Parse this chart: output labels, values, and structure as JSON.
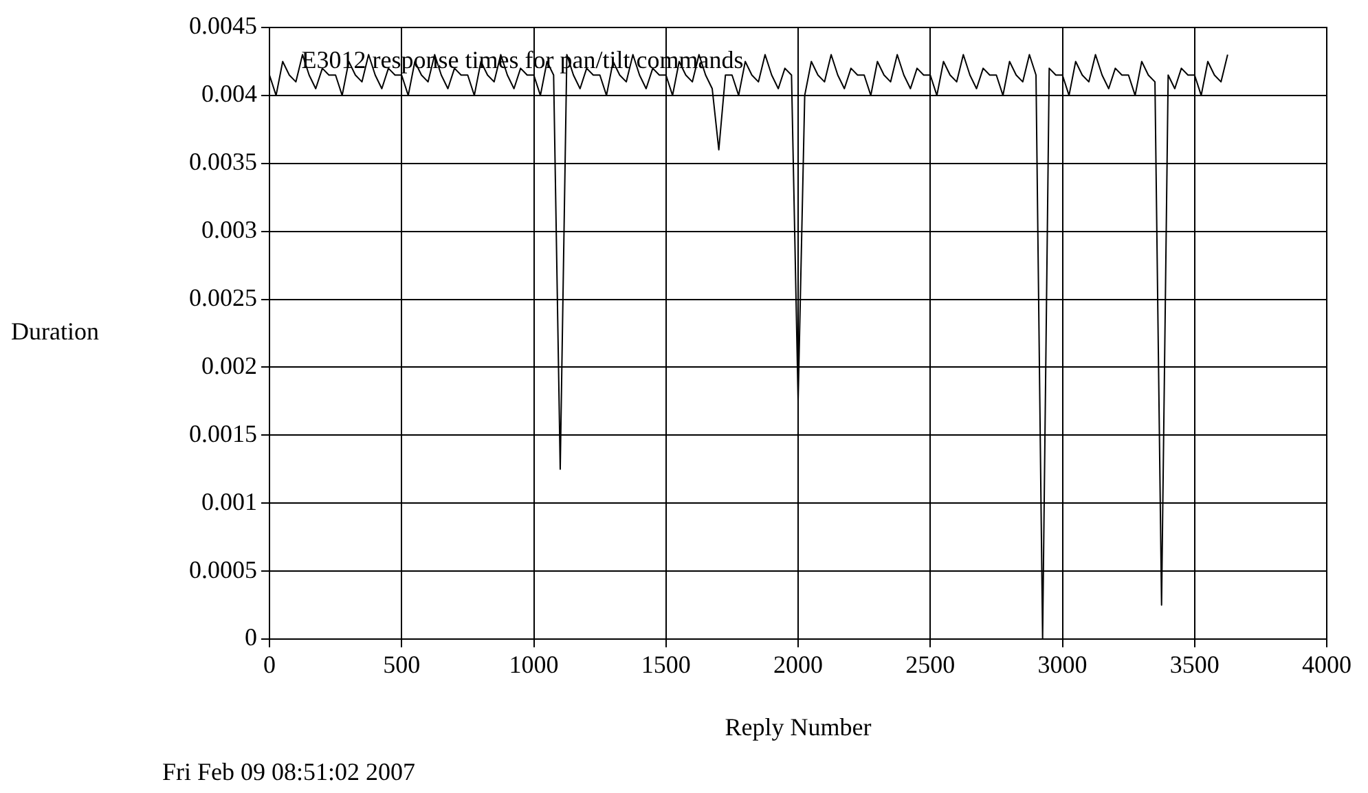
{
  "chart_data": {
    "type": "line",
    "title": "E3012 response times for pan/tilt commands",
    "xlabel": "Reply Number",
    "ylabel": "Duration",
    "annotations": [
      "Fri Feb 09 08:51:02 2007"
    ],
    "x": [
      0,
      25,
      50,
      75,
      100,
      125,
      150,
      175,
      200,
      225,
      250,
      275,
      300,
      325,
      350,
      375,
      400,
      425,
      450,
      475,
      500,
      525,
      550,
      575,
      600,
      625,
      650,
      675,
      700,
      725,
      750,
      775,
      800,
      825,
      850,
      875,
      900,
      925,
      950,
      975,
      1000,
      1025,
      1050,
      1075,
      1100,
      1125,
      1150,
      1175,
      1200,
      1225,
      1250,
      1275,
      1300,
      1325,
      1350,
      1375,
      1400,
      1425,
      1450,
      1475,
      1500,
      1525,
      1550,
      1575,
      1600,
      1625,
      1650,
      1675,
      1700,
      1725,
      1750,
      1775,
      1800,
      1825,
      1850,
      1875,
      1900,
      1925,
      1950,
      1975,
      2000,
      2025,
      2050,
      2075,
      2100,
      2125,
      2150,
      2175,
      2200,
      2225,
      2250,
      2275,
      2300,
      2325,
      2350,
      2375,
      2400,
      2425,
      2450,
      2475,
      2500,
      2525,
      2550,
      2575,
      2600,
      2625,
      2650,
      2675,
      2700,
      2725,
      2750,
      2775,
      2800,
      2825,
      2850,
      2875,
      2900,
      2925,
      2950,
      2975,
      3000,
      3025,
      3050,
      3075,
      3100,
      3125,
      3150,
      3175,
      3200,
      3225,
      3250,
      3275,
      3300,
      3325,
      3350,
      3375,
      3400,
      3425,
      3450,
      3475,
      3500,
      3525,
      3550,
      3575,
      3600,
      3625
    ],
    "series": [
      {
        "color": "#000000",
        "values": [
          0.00415,
          0.004,
          0.00425,
          0.00415,
          0.0041,
          0.0043,
          0.00415,
          0.00405,
          0.0042,
          0.00415,
          0.00415,
          0.004,
          0.00425,
          0.00415,
          0.0041,
          0.0043,
          0.00415,
          0.00405,
          0.0042,
          0.00415,
          0.00415,
          0.004,
          0.00425,
          0.00415,
          0.0041,
          0.0043,
          0.00415,
          0.00405,
          0.0042,
          0.00415,
          0.00415,
          0.004,
          0.00425,
          0.00415,
          0.0041,
          0.0043,
          0.00415,
          0.00405,
          0.0042,
          0.00415,
          0.00415,
          0.004,
          0.00425,
          0.00415,
          0.00125,
          0.0043,
          0.00415,
          0.00405,
          0.0042,
          0.00415,
          0.00415,
          0.004,
          0.00425,
          0.00415,
          0.0041,
          0.0043,
          0.00415,
          0.00405,
          0.0042,
          0.00415,
          0.00415,
          0.004,
          0.00425,
          0.00415,
          0.0041,
          0.0043,
          0.00415,
          0.00405,
          0.0036,
          0.00415,
          0.00415,
          0.004,
          0.00425,
          0.00415,
          0.0041,
          0.0043,
          0.00415,
          0.00405,
          0.0042,
          0.00415,
          0.00175,
          0.004,
          0.00425,
          0.00415,
          0.0041,
          0.0043,
          0.00415,
          0.00405,
          0.0042,
          0.00415,
          0.00415,
          0.004,
          0.00425,
          0.00415,
          0.0041,
          0.0043,
          0.00415,
          0.00405,
          0.0042,
          0.00415,
          0.00415,
          0.004,
          0.00425,
          0.00415,
          0.0041,
          0.0043,
          0.00415,
          0.00405,
          0.0042,
          0.00415,
          0.00415,
          0.004,
          0.00425,
          0.00415,
          0.0041,
          0.0043,
          0.00415,
          0,
          0.0042,
          0.00415,
          0.00415,
          0.004,
          0.00425,
          0.00415,
          0.0041,
          0.0043,
          0.00415,
          0.00405,
          0.0042,
          0.00415,
          0.00415,
          0.004,
          0.00425,
          0.00415,
          0.0041,
          0.00025,
          0.00415,
          0.00405,
          0.0042,
          0.00415,
          0.00415,
          0.004,
          0.00425,
          0.00415,
          0.0041,
          0.0043
        ]
      }
    ],
    "xlim": [
      0,
      4000
    ],
    "xticks": [
      0,
      500,
      1000,
      1500,
      2000,
      2500,
      3000,
      3500,
      4000
    ],
    "ylim": [
      0,
      0.0045
    ],
    "yticks": [
      0,
      0.0005,
      0.001,
      0.0015,
      0.002,
      0.0025,
      0.003,
      0.0035,
      0.004,
      0.0045
    ],
    "grid": true,
    "legend": false,
    "marker": "none",
    "line_style": "solid"
  }
}
